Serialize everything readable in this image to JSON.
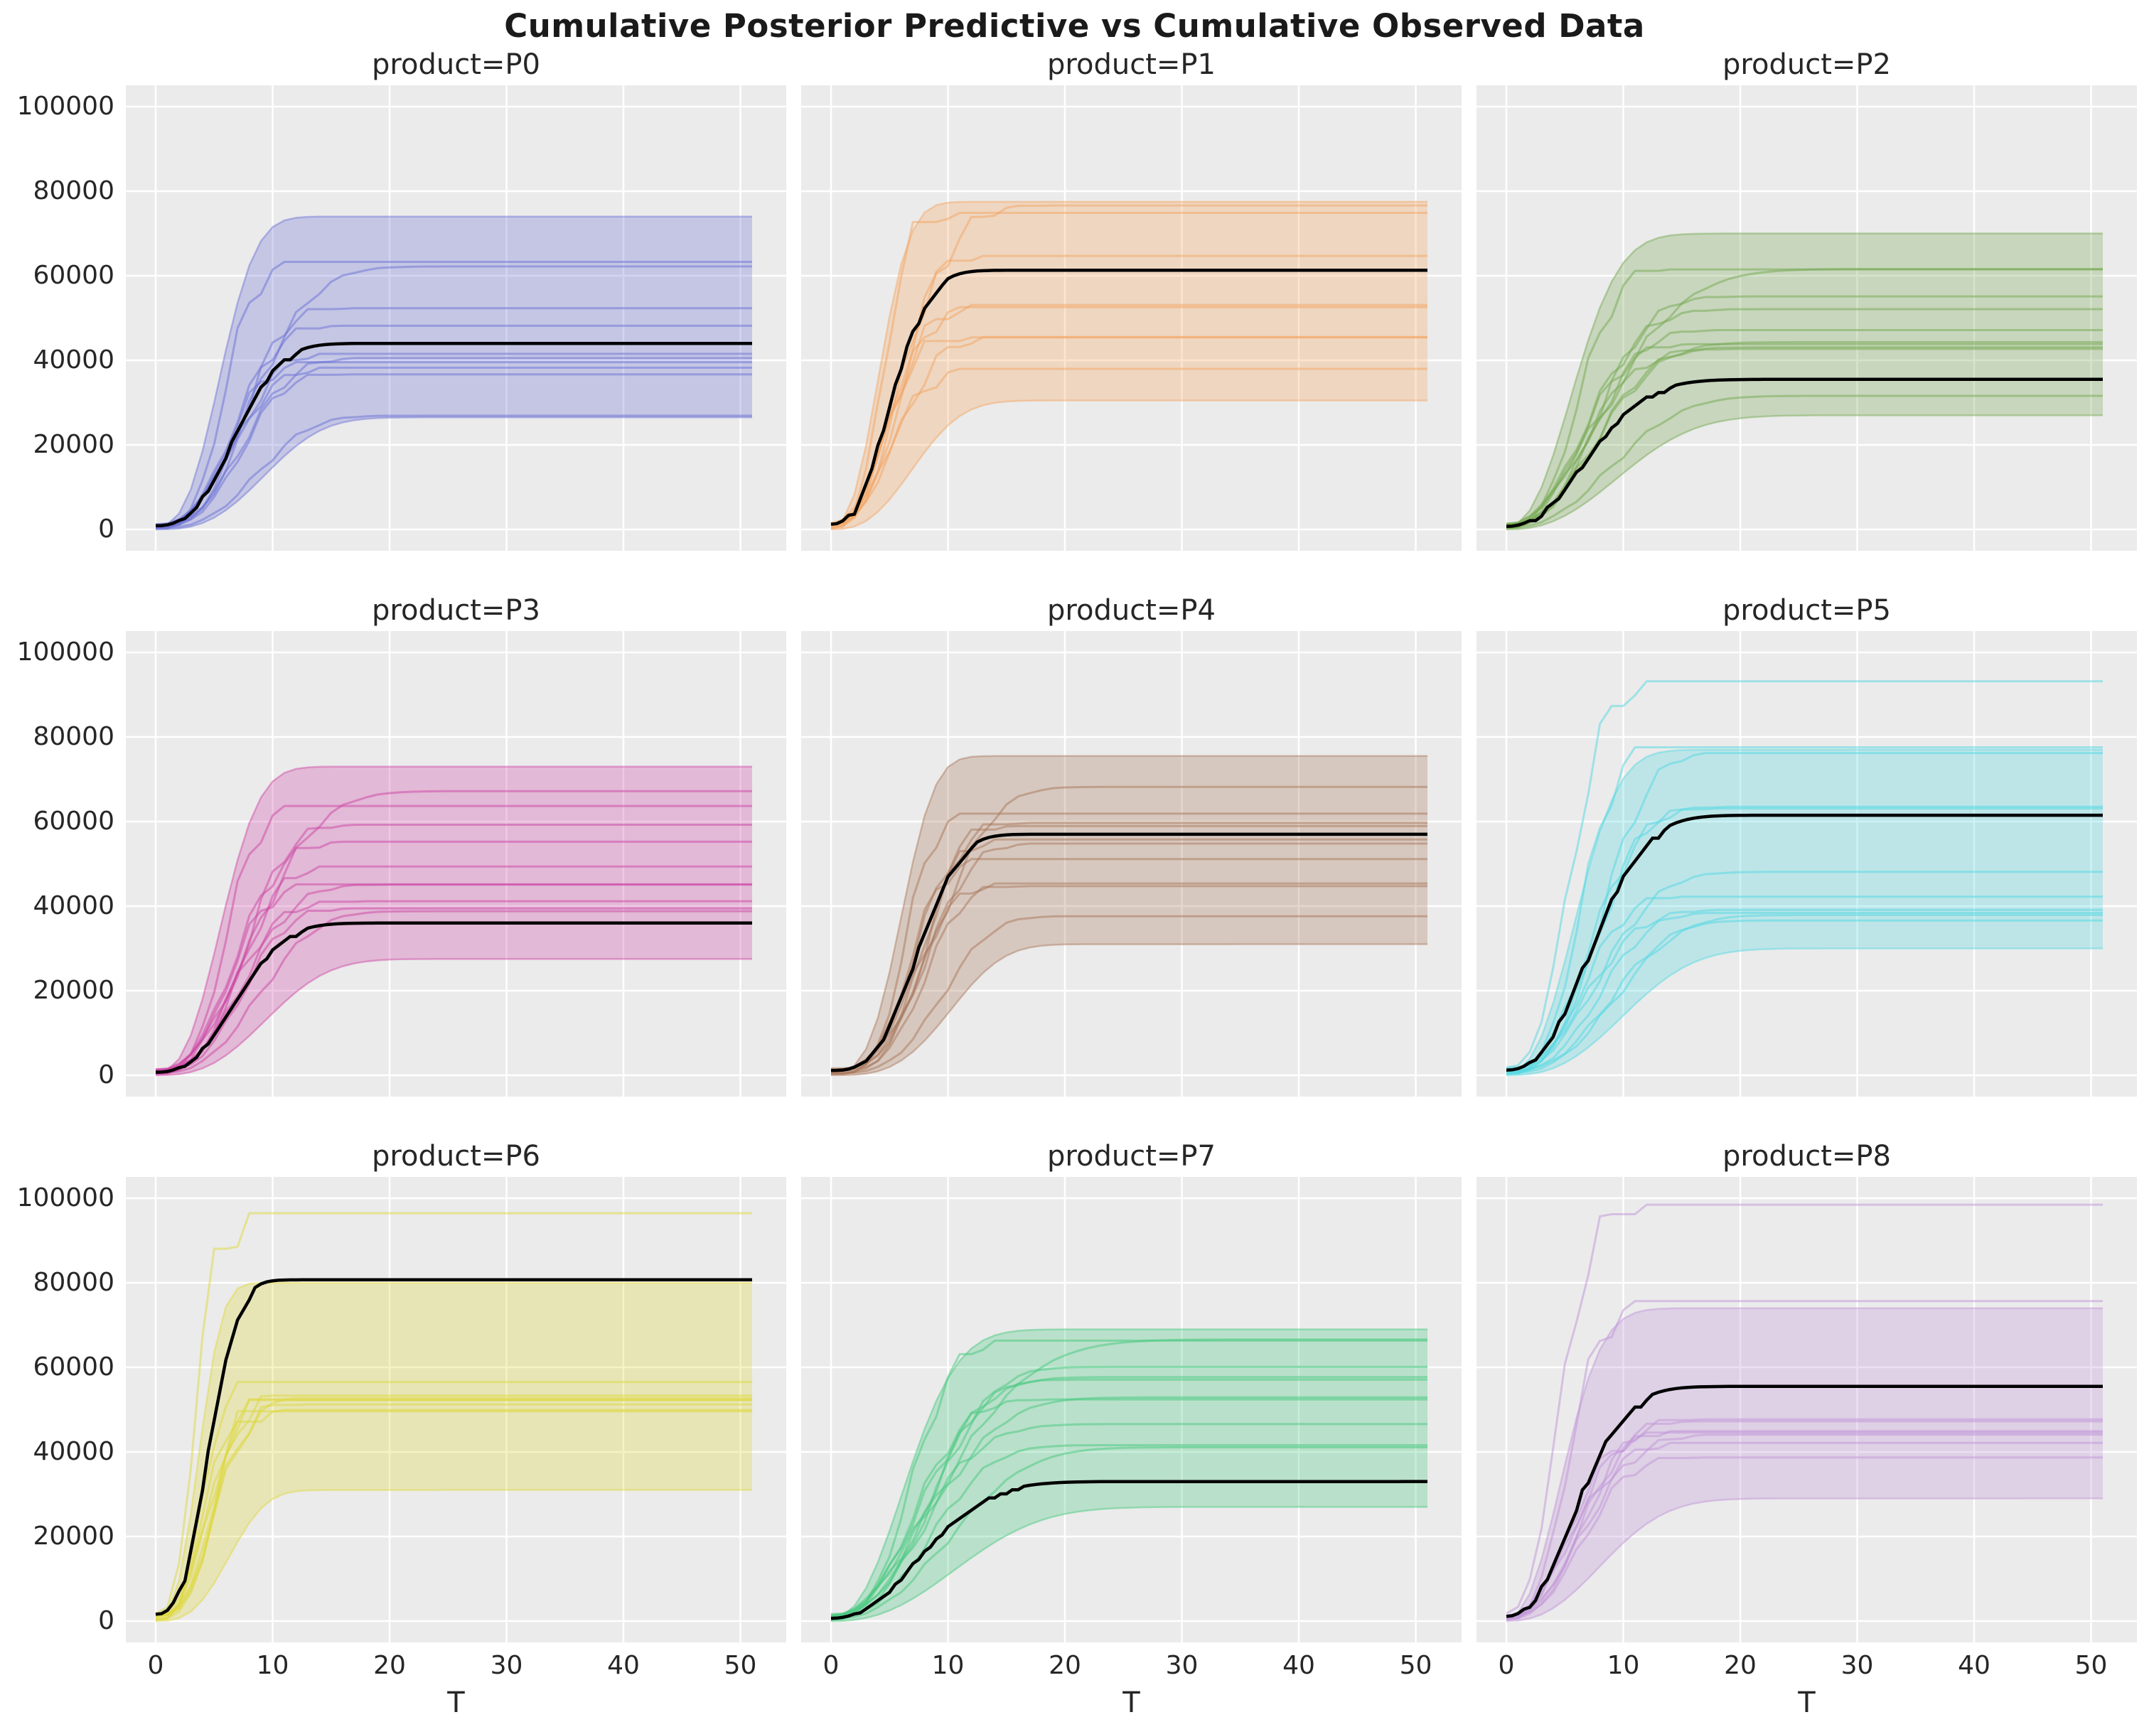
{
  "chart_data": {
    "type": "line",
    "title": "Cumulative Posterior Predictive vs Cumulative Observed Data",
    "xlabel": "T",
    "ylabel": "",
    "x_range": [
      0,
      51
    ],
    "x_ticks": [
      0,
      10,
      20,
      30,
      40,
      50
    ],
    "y_range": [
      0,
      100000
    ],
    "y_ticks": [
      0,
      20000,
      40000,
      60000,
      80000,
      100000
    ],
    "grid": true,
    "legend_position": "none",
    "layout": "3x3 facet grid by product; y tick labels on left column only, x tick labels on bottom row only",
    "series_semantics": {
      "band": "posterior predictive credible interval (shaded)",
      "samples": "posterior predictive sample trajectories (colored lines, final cumulative values listed)",
      "observed": "cumulative observed data (black line, final cumulative value listed)"
    },
    "colors": {
      "panel_background": "#ebebeb",
      "gridline": "#ffffff",
      "observed_line": "#000000",
      "tick_text": "#262626",
      "title_text": "#1a1a1a"
    },
    "panels": [
      {
        "product": "P0",
        "title": "product=P0",
        "color": "#6a6fd4",
        "band": {
          "lower_final": 26500,
          "upper_final": 74000
        },
        "observed_final": 44000,
        "sample_finals": [
          62200,
          61500,
          52200,
          48000,
          41200,
          40500,
          38800,
          38100,
          36600,
          26900
        ],
        "rise": {
          "tau": 7.8,
          "shape": 2.6
        }
      },
      {
        "product": "P1",
        "title": "product=P1",
        "color": "#f4a45f",
        "band": {
          "lower_final": 30500,
          "upper_final": 77500
        },
        "observed_final": 61300,
        "sample_finals": [
          76600,
          72600,
          63600,
          51900,
          51200,
          44900,
          44300,
          37300
        ],
        "rise": {
          "tau": 6.0,
          "shape": 2.4
        }
      },
      {
        "product": "P2",
        "title": "product=P2",
        "color": "#74a74f",
        "band": {
          "lower_final": 27000,
          "upper_final": 70000
        },
        "observed_final": 35500,
        "sample_finals": [
          61600,
          61000,
          55100,
          52100,
          47100,
          44300,
          43700,
          43100,
          42700,
          31600
        ],
        "rise": {
          "tau": 8.5,
          "shape": 2.2
        }
      },
      {
        "product": "P3",
        "title": "product=P3",
        "color": "#cc44a4",
        "band": {
          "lower_final": 27500,
          "upper_final": 73000
        },
        "observed_final": 36000,
        "sample_finals": [
          67200,
          62100,
          59100,
          55100,
          49100,
          45100,
          44500,
          41100,
          39400,
          38800
        ],
        "rise": {
          "tau": 8.0,
          "shape": 2.5
        }
      },
      {
        "product": "P4",
        "title": "product=P4",
        "color": "#a87659",
        "band": {
          "lower_final": 31000,
          "upper_final": 75500
        },
        "observed_final": 57000,
        "sample_finals": [
          68200,
          60100,
          59500,
          58700,
          55300,
          54700,
          50100,
          45100,
          44600,
          37600
        ],
        "rise": {
          "tau": 8.3,
          "shape": 3.0
        }
      },
      {
        "product": "P5",
        "title": "product=P5",
        "color": "#52d7e2",
        "band": {
          "lower_final": 30000,
          "upper_final": 77000
        },
        "observed_final": 61500,
        "sample_finals": [
          91000,
          76800,
          76200,
          63500,
          63000,
          48100,
          42100,
          39100,
          38400,
          37900,
          36600
        ],
        "rise": {
          "tau": 8.6,
          "shape": 2.4
        }
      },
      {
        "product": "P6",
        "title": "product=P6",
        "color": "#ddd73a",
        "band": {
          "lower_final": 31000,
          "upper_final": 80000
        },
        "observed_final": 80700,
        "sample_finals": [
          92000,
          53600,
          51900,
          51400,
          50800,
          50300,
          49800,
          48600,
          48100
        ],
        "rise": {
          "tau": 5.2,
          "shape": 2.7
        }
      },
      {
        "product": "P7",
        "title": "product=P7",
        "color": "#45c87d",
        "band": {
          "lower_final": 27000,
          "upper_final": 69000
        },
        "observed_final": 33000,
        "sample_finals": [
          66600,
          66100,
          60100,
          57700,
          57100,
          52900,
          52400,
          46600,
          41600,
          41100
        ],
        "rise": {
          "tau": 9.5,
          "shape": 2.2
        }
      },
      {
        "product": "P8",
        "title": "product=P8",
        "color": "#bf93d8",
        "band": {
          "lower_final": 29000,
          "upper_final": 74000
        },
        "observed_final": 55500,
        "sample_finals": [
          96000,
          73600,
          47600,
          47100,
          44600,
          44100,
          43800,
          42100,
          38600
        ],
        "rise": {
          "tau": 7.2,
          "shape": 2.2
        }
      }
    ]
  }
}
